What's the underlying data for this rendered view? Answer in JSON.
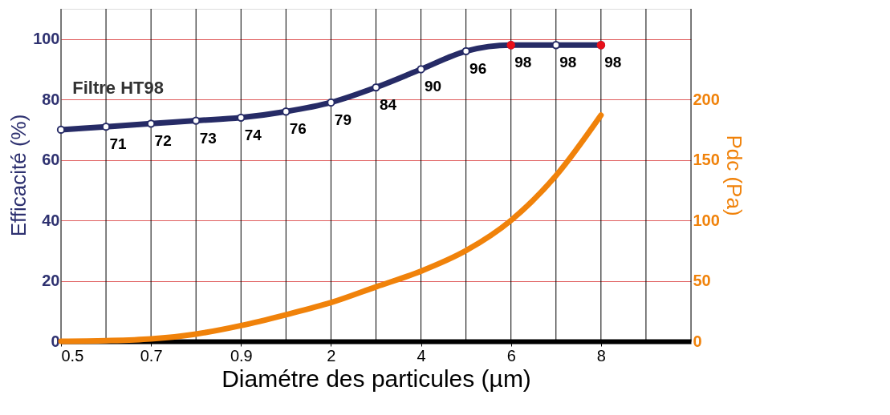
{
  "chart_data": {
    "type": "line",
    "xlabel": "Diamétre des particules (µm)",
    "ylabel": "Efficacité (%)",
    "y2label": "Pdc (Pa)",
    "categories": [
      "0.5",
      null,
      "0.7",
      null,
      "0.9",
      null,
      "2",
      null,
      "4",
      null,
      "6",
      null,
      "8",
      null,
      null
    ],
    "series": [
      {
        "name": "Filtre HT98",
        "color": "#262b66",
        "marker": "circle",
        "values": [
          70,
          71,
          72,
          73,
          74,
          76,
          79,
          84,
          90,
          96,
          98,
          98,
          98,
          null,
          null
        ],
        "value_labels": [
          null,
          "71",
          "72",
          "73",
          "74",
          "76",
          "79",
          "84",
          "90",
          "96",
          "98",
          "98",
          "98",
          null,
          null
        ]
      },
      {
        "type": "line",
        "axis": "y2",
        "color": "#f0820a",
        "values": [
          0,
          0.5,
          2,
          6,
          13,
          22,
          32,
          45,
          58,
          75,
          100,
          137,
          187,
          null,
          null
        ]
      },
      {
        "type": "scatter",
        "color": "#e8101a",
        "values": [
          null,
          null,
          null,
          null,
          null,
          null,
          null,
          null,
          null,
          null,
          98,
          null,
          98,
          null,
          null
        ]
      }
    ],
    "ylim": [
      0,
      110
    ],
    "yticks": [
      0,
      20,
      40,
      60,
      80,
      100
    ],
    "y2lim": [
      0,
      275
    ],
    "y2ticks": [
      0,
      50,
      100,
      150,
      200
    ],
    "grid": true
  }
}
